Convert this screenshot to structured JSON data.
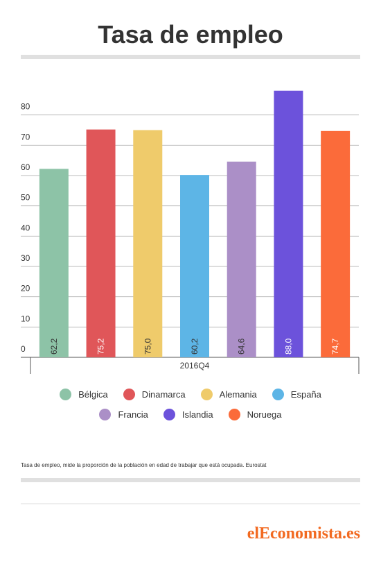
{
  "chart_data": {
    "type": "bar",
    "title": "Tasa de empleo",
    "categories": [
      "2016Q4"
    ],
    "series": [
      {
        "name": "Bélgica",
        "color": "#8dc3a7",
        "values": [
          62.2
        ],
        "value_labels": [
          "62,2"
        ]
      },
      {
        "name": "Dinamarca",
        "color": "#e05659",
        "values": [
          75.2
        ],
        "value_labels": [
          "75,2"
        ]
      },
      {
        "name": "Alemania",
        "color": "#efcb6b",
        "values": [
          75.0
        ],
        "value_labels": [
          "75,0"
        ]
      },
      {
        "name": "España",
        "color": "#5db5e6",
        "values": [
          60.2
        ],
        "value_labels": [
          "60,2"
        ]
      },
      {
        "name": "Francia",
        "color": "#ab8fc7",
        "values": [
          64.6
        ],
        "value_labels": [
          "64,6"
        ]
      },
      {
        "name": "Islandia",
        "color": "#6c52db",
        "values": [
          88.0
        ],
        "value_labels": [
          "88,0"
        ]
      },
      {
        "name": "Noruega",
        "color": "#fb6b3a",
        "values": [
          74.7
        ],
        "value_labels": [
          "74,7"
        ]
      }
    ],
    "ylim": [
      0,
      90
    ],
    "yticks": [
      0,
      10,
      20,
      30,
      40,
      50,
      60,
      70,
      80
    ],
    "grid": true,
    "note": "Tasa de empleo, mide la proporción de la población en edad de trabajar que está ocupada. Eurostat",
    "source": "elEconomista.es"
  }
}
